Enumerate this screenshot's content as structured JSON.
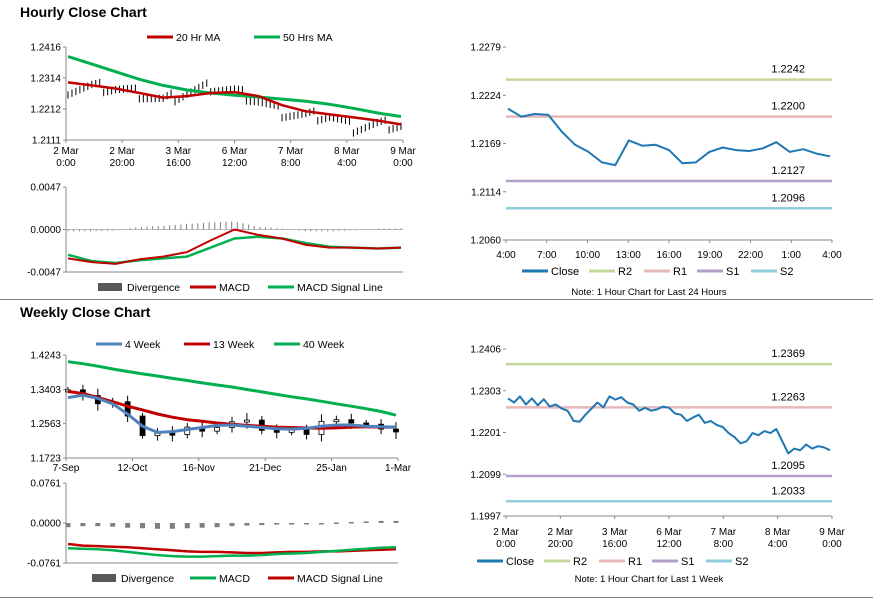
{
  "sections": {
    "hourly_title": "Hourly Close Chart",
    "weekly_title": "Weekly Close Chart"
  },
  "colors": {
    "ma20": "#c00000",
    "ma50": "#00b050",
    "close": "#1f77b4",
    "r2": "#c4d79b",
    "r1": "#e6b8b7",
    "s1": "#b1a0c7",
    "s2": "#92cddc",
    "ma4": "#4f81bd",
    "divergence": "#7f7f7f"
  },
  "chart_data": [
    {
      "id": "hourly_price",
      "type": "line",
      "legend": [
        "20 Hr MA",
        "50 Hrs MA"
      ],
      "yticks": [
        "1.2416",
        "1.2314",
        "1.2212",
        "1.2111"
      ],
      "ylim": [
        1.2111,
        1.2416
      ],
      "xticks": [
        [
          "2 Mar",
          "0:00"
        ],
        [
          "2 Mar",
          "20:00"
        ],
        [
          "3 Mar",
          "16:00"
        ],
        [
          "6 Mar",
          "12:00"
        ],
        [
          "7 Mar",
          "8:00"
        ],
        [
          "8 Mar",
          "4:00"
        ],
        [
          "9 Mar",
          "0:00"
        ]
      ],
      "series": [
        {
          "name": "50 Hrs MA",
          "values": [
            1.2385,
            1.236,
            1.2335,
            1.231,
            1.229,
            1.2275,
            1.2265,
            1.2258,
            1.2252,
            1.2245,
            1.2238,
            1.2228,
            1.2215,
            1.22,
            1.2188
          ]
        },
        {
          "name": "20 Hr MA",
          "values": [
            1.23,
            1.229,
            1.228,
            1.2265,
            1.225,
            1.2255,
            1.2265,
            1.2268,
            1.2255,
            1.2225,
            1.2205,
            1.2195,
            1.2185,
            1.2175,
            1.2162
          ]
        },
        {
          "name": "Close",
          "values": [
            1.2275,
            1.2285,
            1.228,
            1.2262,
            1.224,
            1.2265,
            1.2285,
            1.227,
            1.224,
            1.22,
            1.219,
            1.219,
            1.215,
            1.216,
            1.216
          ]
        }
      ]
    },
    {
      "id": "hourly_macd",
      "type": "line",
      "legend": [
        "Divergence",
        "MACD",
        "MACD Signal Line"
      ],
      "yticks": [
        "0.0047",
        "0.0000",
        "-0.0047"
      ],
      "ylim": [
        -0.0047,
        0.0047
      ],
      "series": [
        {
          "name": "MACD",
          "values": [
            -0.0032,
            -0.0036,
            -0.0038,
            -0.0033,
            -0.003,
            -0.0025,
            -0.0012,
            0.0,
            -0.0006,
            -0.001,
            -0.0017,
            -0.002,
            -0.002,
            -0.0021,
            -0.002
          ]
        },
        {
          "name": "MACD Signal Line",
          "values": [
            -0.0028,
            -0.0035,
            -0.0037,
            -0.0034,
            -0.0032,
            -0.003,
            -0.002,
            -0.001,
            -0.0008,
            -0.001,
            -0.0015,
            -0.0019,
            -0.002,
            -0.0021,
            -0.002
          ]
        },
        {
          "name": "Divergence",
          "values": [
            -0.0002,
            -0.0002,
            -0.0001,
            0.0003,
            0.0004,
            0.0006,
            0.0008,
            0.0009,
            0.0003,
            0.0001,
            -0.0002,
            -0.0002,
            -0.0001,
            0.0,
            0.0
          ]
        }
      ]
    },
    {
      "id": "hourly_levels",
      "type": "line",
      "yticks": [
        "1.2279",
        "1.2224",
        "1.2169",
        "1.2114",
        "1.2060"
      ],
      "ylim": [
        1.206,
        1.2279
      ],
      "xticks": [
        "4:00",
        "7:00",
        "10:00",
        "13:00",
        "16:00",
        "19:00",
        "22:00",
        "1:00",
        "4:00"
      ],
      "levels": [
        {
          "name": "R2",
          "value": 1.2242,
          "label": "1.2242"
        },
        {
          "name": "R1",
          "value": 1.22,
          "label": "1.2200"
        },
        {
          "name": "S1",
          "value": 1.2127,
          "label": "1.2127"
        },
        {
          "name": "S2",
          "value": 1.2096,
          "label": "1.2096"
        }
      ],
      "legend": [
        "Close",
        "R2",
        "R1",
        "S1",
        "S2"
      ],
      "note": "Note: 1 Hour Chart for Last 24 Hours",
      "series": [
        {
          "name": "Close",
          "values": [
            1.2209,
            1.22,
            1.2203,
            1.2202,
            1.2183,
            1.2168,
            1.216,
            1.2148,
            1.2145,
            1.2173,
            1.2167,
            1.2168,
            1.2162,
            1.2147,
            1.2148,
            1.216,
            1.2165,
            1.2162,
            1.2161,
            1.2164,
            1.2171,
            1.216,
            1.2163,
            1.2158,
            1.2155
          ]
        }
      ]
    },
    {
      "id": "weekly_price",
      "type": "line",
      "legend": [
        "4 Week",
        "13 Week",
        "40 Week"
      ],
      "yticks": [
        "1.4243",
        "1.3403",
        "1.2563",
        "1.1723"
      ],
      "ylim": [
        1.1723,
        1.4243
      ],
      "xticks": [
        "7-Sep",
        "12-Oct",
        "16-Nov",
        "21-Dec",
        "25-Jan",
        "1-Mar"
      ],
      "series": [
        {
          "name": "40 Week",
          "values": [
            1.408,
            1.403,
            1.397,
            1.39,
            1.384,
            1.378,
            1.373,
            1.367,
            1.362,
            1.356,
            1.351,
            1.346,
            1.34,
            1.334,
            1.328,
            1.322,
            1.317,
            1.311,
            1.305,
            1.299,
            1.293,
            1.286,
            1.277
          ]
        },
        {
          "name": "13 Week",
          "values": [
            1.335,
            1.33,
            1.32,
            1.31,
            1.299,
            1.29,
            1.28,
            1.272,
            1.266,
            1.262,
            1.258,
            1.255,
            1.252,
            1.25,
            1.248,
            1.247,
            1.246,
            1.245,
            1.246,
            1.248,
            1.249,
            1.248,
            1.248
          ]
        },
        {
          "name": "4 Week",
          "values": [
            1.32,
            1.326,
            1.318,
            1.305,
            1.28,
            1.25,
            1.235,
            1.237,
            1.242,
            1.247,
            1.252,
            1.253,
            1.25,
            1.247,
            1.244,
            1.243,
            1.245,
            1.25,
            1.253,
            1.253,
            1.25,
            1.249,
            1.248
          ]
        },
        {
          "name": "Close",
          "values": [
            1.339,
            1.325,
            1.305,
            1.31,
            1.275,
            1.227,
            1.233,
            1.23,
            1.248,
            1.238,
            1.247,
            1.261,
            1.265,
            1.24,
            1.235,
            1.241,
            1.23,
            1.262,
            1.266,
            1.258,
            1.255,
            1.243,
            1.236
          ]
        }
      ]
    },
    {
      "id": "weekly_macd",
      "type": "line",
      "legend": [
        "Divergence",
        "MACD",
        "MACD Signal Line"
      ],
      "yticks": [
        "0.0761",
        "0.0000",
        "-0.0761"
      ],
      "ylim": [
        -0.0761,
        0.0761
      ],
      "series": [
        {
          "name": "MACD Signal Line",
          "values": [
            -0.04,
            -0.043,
            -0.044,
            -0.045,
            -0.046,
            -0.048,
            -0.05,
            -0.052,
            -0.054,
            -0.055,
            -0.055,
            -0.056,
            -0.057,
            -0.057,
            -0.056,
            -0.055,
            -0.055,
            -0.054,
            -0.054,
            -0.053,
            -0.052,
            -0.051,
            -0.05
          ]
        },
        {
          "name": "MACD",
          "values": [
            -0.048,
            -0.049,
            -0.05,
            -0.052,
            -0.055,
            -0.058,
            -0.061,
            -0.063,
            -0.064,
            -0.064,
            -0.063,
            -0.062,
            -0.062,
            -0.061,
            -0.059,
            -0.058,
            -0.057,
            -0.055,
            -0.053,
            -0.051,
            -0.049,
            -0.047,
            -0.046
          ]
        },
        {
          "name": "Divergence",
          "values": [
            -0.008,
            -0.006,
            -0.006,
            -0.007,
            -0.009,
            -0.01,
            -0.011,
            -0.011,
            -0.01,
            -0.009,
            -0.008,
            -0.006,
            -0.005,
            -0.004,
            -0.003,
            -0.003,
            -0.002,
            -0.001,
            0.001,
            0.002,
            0.003,
            0.004,
            0.004
          ]
        }
      ]
    },
    {
      "id": "weekly_levels",
      "type": "line",
      "yticks": [
        "1.2406",
        "1.2303",
        "1.2201",
        "1.2099",
        "1.1997"
      ],
      "ylim": [
        1.1997,
        1.2406
      ],
      "xticks": [
        [
          "2 Mar",
          "0:00"
        ],
        [
          "2 Mar",
          "20:00"
        ],
        [
          "3 Mar",
          "16:00"
        ],
        [
          "6 Mar",
          "12:00"
        ],
        [
          "7 Mar",
          "8:00"
        ],
        [
          "8 Mar",
          "4:00"
        ],
        [
          "9 Mar",
          "0:00"
        ]
      ],
      "levels": [
        {
          "name": "R2",
          "value": 1.2369,
          "label": "1.2369"
        },
        {
          "name": "R1",
          "value": 1.2263,
          "label": "1.2263"
        },
        {
          "name": "S1",
          "value": 1.2095,
          "label": "1.2095"
        },
        {
          "name": "S2",
          "value": 1.2033,
          "label": "1.2033"
        }
      ],
      "legend": [
        "Close",
        "R2",
        "R1",
        "S1",
        "S2"
      ],
      "note": "Note: 1 Hour Chart for Last 1 Week",
      "series": [
        {
          "name": "Close",
          "values": [
            1.2285,
            1.2275,
            1.229,
            1.227,
            1.2285,
            1.2268,
            1.2283,
            1.2265,
            1.227,
            1.226,
            1.2255,
            1.223,
            1.2228,
            1.2245,
            1.226,
            1.2275,
            1.2263,
            1.229,
            1.2282,
            1.2288,
            1.2275,
            1.227,
            1.2255,
            1.2262,
            1.2255,
            1.2258,
            1.2265,
            1.2262,
            1.2248,
            1.2245,
            1.223,
            1.2238,
            1.2245,
            1.2225,
            1.223,
            1.222,
            1.2215,
            1.22,
            1.219,
            1.2175,
            1.218,
            1.22,
            1.2195,
            1.2205,
            1.22,
            1.221,
            1.218,
            1.215,
            1.2162,
            1.2158,
            1.2172,
            1.2162,
            1.2168,
            1.2165,
            1.2158
          ]
        }
      ]
    }
  ]
}
